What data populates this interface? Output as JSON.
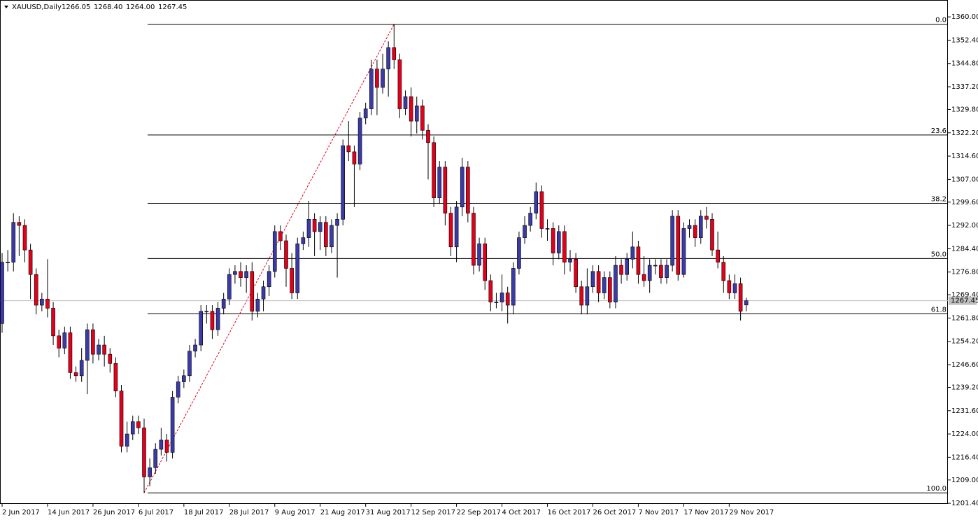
{
  "chart_data": {
    "type": "candlestick",
    "title": "XAUUSD,Daily",
    "header_values": [
      "1266.05",
      "1268.40",
      "1264.00",
      "1267.45"
    ],
    "up_color": "#3a3aa8",
    "down_color": "#e2001a",
    "categories": [
      "2 Jun 2017",
      null,
      null,
      null,
      null,
      null,
      null,
      null,
      "14 Jun 2017",
      null,
      null,
      null,
      null,
      null,
      null,
      null,
      "26 Jun 2017",
      null,
      null,
      null,
      null,
      null,
      null,
      null,
      "6 Jul 2017",
      null,
      null,
      null,
      null,
      null,
      null,
      null,
      "18 Jul 2017",
      null,
      null,
      null,
      null,
      null,
      null,
      null,
      "28 Jul 2017",
      null,
      null,
      null,
      null,
      null,
      null,
      null,
      "9 Aug 2017",
      null,
      null,
      null,
      null,
      null,
      null,
      null,
      "21 Aug 2017",
      null,
      null,
      null,
      null,
      null,
      null,
      null,
      "31 Aug 2017",
      null,
      null,
      null,
      null,
      null,
      null,
      null,
      "12 Sep 2017",
      null,
      null,
      null,
      null,
      null,
      null,
      null,
      "22 Sep 2017",
      null,
      null,
      null,
      null,
      null,
      null,
      null,
      "4 Oct 2017",
      null,
      null,
      null,
      null,
      null,
      null,
      null,
      "16 Oct 2017",
      null,
      null,
      null,
      null,
      null,
      null,
      null,
      "26 Oct 2017",
      null,
      null,
      null,
      null,
      null,
      null,
      null,
      "7 Nov 2017",
      null,
      null,
      null,
      null,
      null,
      null,
      null,
      "17 Nov 2017",
      null,
      null,
      null,
      null,
      null,
      null,
      null,
      "29 Nov 2017",
      null,
      null,
      null
    ],
    "open": [
      1260,
      1280,
      1280,
      1293,
      1292,
      1284,
      1276,
      1266,
      1268,
      1265,
      1256,
      1252,
      1257,
      1244,
      1243,
      1248,
      1258,
      1250,
      1253,
      1250,
      1247,
      1238,
      1220,
      1224,
      1228,
      1226,
      1210,
      1213,
      1219,
      1222,
      1218,
      1236,
      1241,
      1243,
      1251,
      1253,
      1264,
      1264,
      1258,
      1265,
      1268,
      1276,
      1277,
      1275,
      1277,
      1264,
      1268,
      1272,
      1277,
      1290,
      1287,
      1278,
      1270,
      1286,
      1288,
      1294,
      1290,
      1293,
      1285,
      1292,
      1294,
      1318,
      1316,
      1312,
      1327,
      1330,
      1343,
      1337,
      1343,
      1350,
      1346,
      1330,
      1334,
      1326,
      1331,
      1323,
      1319,
      1301,
      1311,
      1296,
      1285,
      1298,
      1311,
      1296,
      1279,
      1286,
      1274,
      1267,
      1267,
      1270,
      1266,
      1278,
      1288,
      1292,
      1296,
      1303,
      1291,
      1291,
      1283,
      1290,
      1280,
      1281,
      1272,
      1266,
      1272,
      1277,
      1270,
      1275,
      1267,
      1279,
      1276,
      1281,
      1285,
      1276,
      1274,
      1279,
      1279,
      1275,
      1279,
      1295,
      1276,
      1291,
      1292,
      1288,
      1295,
      1294,
      1284,
      1280,
      1274,
      1270,
      1273,
      1266.05
    ],
    "high": [
      1283,
      1284,
      1296,
      1295,
      1294,
      1286,
      1278,
      1270,
      1281,
      1267,
      1258,
      1259,
      1259,
      1246,
      1252,
      1260,
      1260,
      1255,
      1256,
      1252,
      1249,
      1240,
      1228,
      1230,
      1230,
      1229,
      1216,
      1221,
      1226,
      1224,
      1238,
      1243,
      1245,
      1253,
      1255,
      1266,
      1266,
      1266,
      1267,
      1270,
      1278,
      1279,
      1280,
      1279,
      1280,
      1270,
      1274,
      1279,
      1292,
      1292,
      1289,
      1283,
      1288,
      1290,
      1300,
      1296,
      1295,
      1295,
      1294,
      1296,
      1320,
      1326,
      1318,
      1329,
      1332,
      1346,
      1346,
      1348,
      1352,
      1357.6,
      1348,
      1336,
      1337,
      1334,
      1333,
      1325,
      1321,
      1313,
      1313,
      1298,
      1300,
      1314,
      1313,
      1298,
      1288,
      1288,
      1276,
      1270,
      1276,
      1272,
      1280,
      1290,
      1295,
      1298,
      1306,
      1305,
      1294,
      1293,
      1292,
      1292,
      1284,
      1283,
      1274,
      1278,
      1279,
      1279,
      1277,
      1277,
      1282,
      1281,
      1283,
      1290,
      1287,
      1282,
      1281,
      1281,
      1281,
      1281,
      1297,
      1297,
      1293,
      1294,
      1294,
      1297,
      1298,
      1296,
      1290,
      1282,
      1276,
      1276,
      1275,
      1268.4
    ],
    "low": [
      1257,
      1277,
      1277,
      1282,
      1280,
      1268,
      1263,
      1264,
      1262,
      1253,
      1249,
      1250,
      1242,
      1241,
      1241,
      1237,
      1247,
      1248,
      1246,
      1244,
      1236,
      1218,
      1218,
      1222,
      1224,
      1204.8,
      1207,
      1211,
      1217,
      1215,
      1216,
      1234,
      1239,
      1241,
      1249,
      1251,
      1260,
      1255,
      1256,
      1263,
      1266,
      1273,
      1272,
      1270,
      1261,
      1262,
      1264,
      1269,
      1275,
      1284,
      1272,
      1268,
      1268,
      1284,
      1285,
      1282,
      1284,
      1282,
      1283,
      1275,
      1292,
      1313,
      1298,
      1310,
      1325,
      1328,
      1328,
      1335,
      1334,
      1343,
      1327,
      1328,
      1321,
      1322,
      1320,
      1307,
      1298,
      1299,
      1292,
      1282,
      1280,
      1295,
      1293,
      1276,
      1277,
      1271,
      1264,
      1265,
      1264,
      1260,
      1263,
      1276,
      1286,
      1290,
      1294,
      1288,
      1287,
      1279,
      1281,
      1276,
      1277,
      1270,
      1263,
      1263,
      1270,
      1267,
      1268,
      1265,
      1265,
      1273,
      1274,
      1278,
      1273,
      1272,
      1270,
      1276,
      1273,
      1273,
      1277,
      1274,
      1275,
      1288,
      1285,
      1286,
      1291,
      1282,
      1278,
      1270,
      1268,
      1268,
      1261,
      1264
    ],
    "close": [
      1280,
      1280,
      1293,
      1292,
      1284,
      1276,
      1266,
      1268,
      1265,
      1256,
      1252,
      1257,
      1244,
      1243,
      1248,
      1258,
      1250,
      1253,
      1250,
      1247,
      1238,
      1220,
      1224,
      1228,
      1226,
      1210,
      1213,
      1219,
      1222,
      1218,
      1236,
      1241,
      1243,
      1251,
      1253,
      1264,
      1264,
      1258,
      1265,
      1268,
      1276,
      1277,
      1275,
      1277,
      1264,
      1268,
      1272,
      1277,
      1290,
      1287,
      1278,
      1270,
      1286,
      1288,
      1294,
      1290,
      1293,
      1285,
      1292,
      1294,
      1318,
      1316,
      1312,
      1327,
      1330,
      1343,
      1337,
      1343,
      1350,
      1346,
      1330,
      1334,
      1326,
      1331,
      1323,
      1319,
      1301,
      1311,
      1296,
      1285,
      1298,
      1311,
      1296,
      1279,
      1286,
      1274,
      1267,
      1267,
      1270,
      1266,
      1278,
      1288,
      1292,
      1296,
      1303,
      1291,
      1291,
      1283,
      1290,
      1280,
      1281,
      1272,
      1266,
      1272,
      1277,
      1270,
      1275,
      1267,
      1279,
      1276,
      1281,
      1285,
      1276,
      1274,
      1279,
      1279,
      1275,
      1279,
      1295,
      1276,
      1291,
      1292,
      1288,
      1295,
      1294,
      1284,
      1280,
      1274,
      1270,
      1273,
      1264,
      1267.45
    ],
    "fib_levels": [
      {
        "label": "0.0",
        "value": 1357.6
      },
      {
        "label": "23.6",
        "value": 1321.5
      },
      {
        "label": "38.2",
        "value": 1299.2
      },
      {
        "label": "50.0",
        "value": 1281.2
      },
      {
        "label": "61.8",
        "value": 1263.2
      },
      {
        "label": "100.0",
        "value": 1204.8
      }
    ],
    "ylim": [
      1201.2,
      1365.5
    ],
    "yticks": [
      {
        "value": 1360,
        "label": "1360.00"
      },
      {
        "value": 1352.4,
        "label": "1352.40"
      },
      {
        "value": 1344.8,
        "label": "1344.80"
      },
      {
        "value": 1337.2,
        "label": "1337.20"
      },
      {
        "value": 1329.8,
        "label": "1329.80"
      },
      {
        "value": 1322.2,
        "label": "1322.20"
      },
      {
        "value": 1314.6,
        "label": "1314.60"
      },
      {
        "value": 1307,
        "label": "1307.00"
      },
      {
        "value": 1299.6,
        "label": "1299.60"
      },
      {
        "value": 1292,
        "label": "1292.00"
      },
      {
        "value": 1284.4,
        "label": "1284.40"
      },
      {
        "value": 1276.8,
        "label": "1276.80"
      },
      {
        "value": 1269.4,
        "label": "1269.40"
      },
      {
        "value": 1261.8,
        "label": "1261.80"
      },
      {
        "value": 1254.2,
        "label": "1254.20"
      },
      {
        "value": 1246.6,
        "label": "1246.60"
      },
      {
        "value": 1239.2,
        "label": "1239.20"
      },
      {
        "value": 1231.6,
        "label": "1231.60"
      },
      {
        "value": 1224,
        "label": "1224.00"
      },
      {
        "value": 1216.4,
        "label": "1216.40"
      },
      {
        "value": 1209,
        "label": "1209.00"
      },
      {
        "value": 1201.4,
        "label": "1201.40"
      }
    ]
  }
}
